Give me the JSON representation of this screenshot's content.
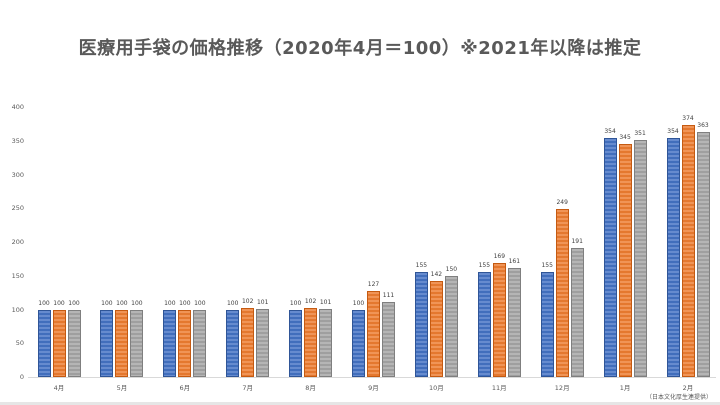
{
  "chart_data": {
    "type": "bar",
    "title": "医療用手袋の価格推移（2020年4月＝100）※2021年以降は推定",
    "xlabel": "",
    "ylabel": "",
    "ylim": [
      0,
      400
    ],
    "yticks": [
      0,
      50,
      100,
      150,
      200,
      250,
      300,
      350,
      400
    ],
    "grid": false,
    "legend": "none",
    "categories": [
      "4月",
      "5月",
      "6月",
      "7月",
      "8月",
      "9月",
      "10月",
      "11月",
      "12月",
      "1月",
      "2月"
    ],
    "series": [
      {
        "name": "series1",
        "color": "#4472c4",
        "values": [
          100,
          100,
          100,
          100,
          100,
          100,
          155,
          155,
          155,
          354,
          354
        ]
      },
      {
        "name": "series2",
        "color": "#ed7d31",
        "values": [
          100,
          100,
          100,
          102,
          102,
          127,
          142,
          169,
          249,
          345,
          374
        ]
      },
      {
        "name": "series3",
        "color": "#a5a5a5",
        "values": [
          100,
          100,
          100,
          101,
          101,
          111,
          150,
          161,
          191,
          351,
          363
        ]
      }
    ],
    "source_note": "（日本文化厚生連提供）"
  }
}
